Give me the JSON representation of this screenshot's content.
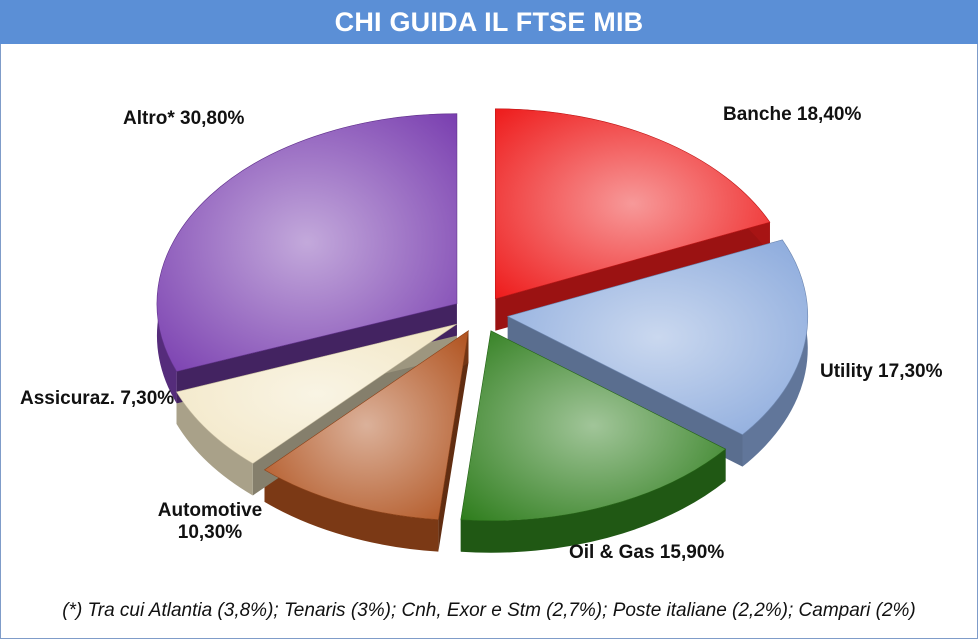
{
  "chart_data": {
    "type": "pie",
    "title": "CHI GUIDA IL FTSE MIB",
    "slices": [
      {
        "name": "Banche",
        "value": 18.4,
        "label": "Banche 18,40%",
        "color": "#ee1c1c"
      },
      {
        "name": "Utility",
        "value": 17.3,
        "label": "Utility 17,30%",
        "color": "#8aa9dc"
      },
      {
        "name": "Oil & Gas",
        "value": 15.9,
        "label": "Oil & Gas 15,90%",
        "color": "#2e7d1c"
      },
      {
        "name": "Automotive",
        "value": 10.3,
        "label_lines": [
          "Automotive",
          "10,30%"
        ],
        "color": "#b0521e"
      },
      {
        "name": "Assicuraz.",
        "value": 7.3,
        "label": "Assicuraz. 7,30%",
        "color": "#f2e6c4"
      },
      {
        "name": "Altro*",
        "value": 30.8,
        "label": "Altro* 30,80%",
        "color": "#7a3fb0"
      }
    ],
    "footnote": "(*) Tra cui Atlantia (3,8%); Tenaris (3%); Cnh, Exor e Stm (2,7%); Poste italiane (2,2%); Campari (2%)"
  }
}
